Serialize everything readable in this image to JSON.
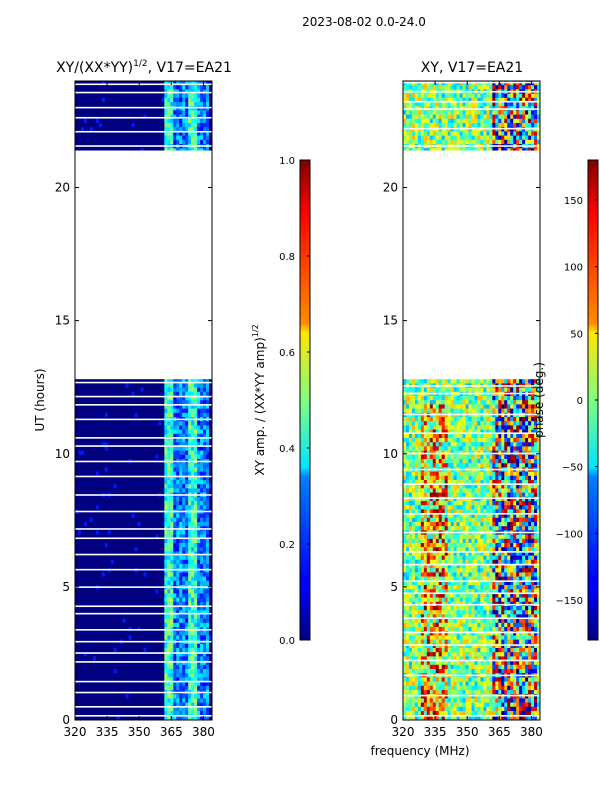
{
  "suptitle": "2023-08-02 0.0-24.0",
  "shared_xlabel": "frequency (MHz)",
  "colors": {
    "jet_low": "#00007f",
    "jet_high": "#7f0000",
    "gap": "#ffffff"
  },
  "chart_data": [
    {
      "type": "heatmap",
      "title_main": "XY/(XX*YY)",
      "title_sup": "1/2",
      "title_tail": ", V17=EA21",
      "xlabel": "",
      "ylabel": "UT (hours)",
      "xlim": [
        320,
        384
      ],
      "ylim": [
        0,
        24
      ],
      "xticks": [
        320,
        335,
        350,
        365,
        380
      ],
      "yticks": [
        0,
        5,
        10,
        15,
        20
      ],
      "data_segments_hours": [
        [
          0,
          12.8
        ],
        [
          21.4,
          24
        ]
      ],
      "colorbar": {
        "label_main": "XY amp. / (XX*YY amp)",
        "label_sup": "1/2",
        "range": [
          0.0,
          1.0
        ],
        "ticks": [
          "0.0",
          "0.2",
          "0.4",
          "0.6",
          "0.8",
          "1.0"
        ]
      }
    },
    {
      "type": "heatmap",
      "title": "XY, V17=EA21",
      "xlabel": "frequency (MHz)",
      "ylabel": "",
      "xlim": [
        320,
        384
      ],
      "ylim": [
        0,
        24
      ],
      "xticks": [
        320,
        335,
        350,
        365,
        380
      ],
      "yticks": [
        0,
        5,
        10,
        15,
        20
      ],
      "data_segments_hours": [
        [
          0,
          12.8
        ],
        [
          21.4,
          24
        ]
      ],
      "colorbar": {
        "label": "phase (deg.)",
        "range": [
          -180,
          180
        ],
        "ticks": [
          "-150",
          "-100",
          "-50",
          "0",
          "50",
          "100",
          "150"
        ]
      }
    }
  ]
}
